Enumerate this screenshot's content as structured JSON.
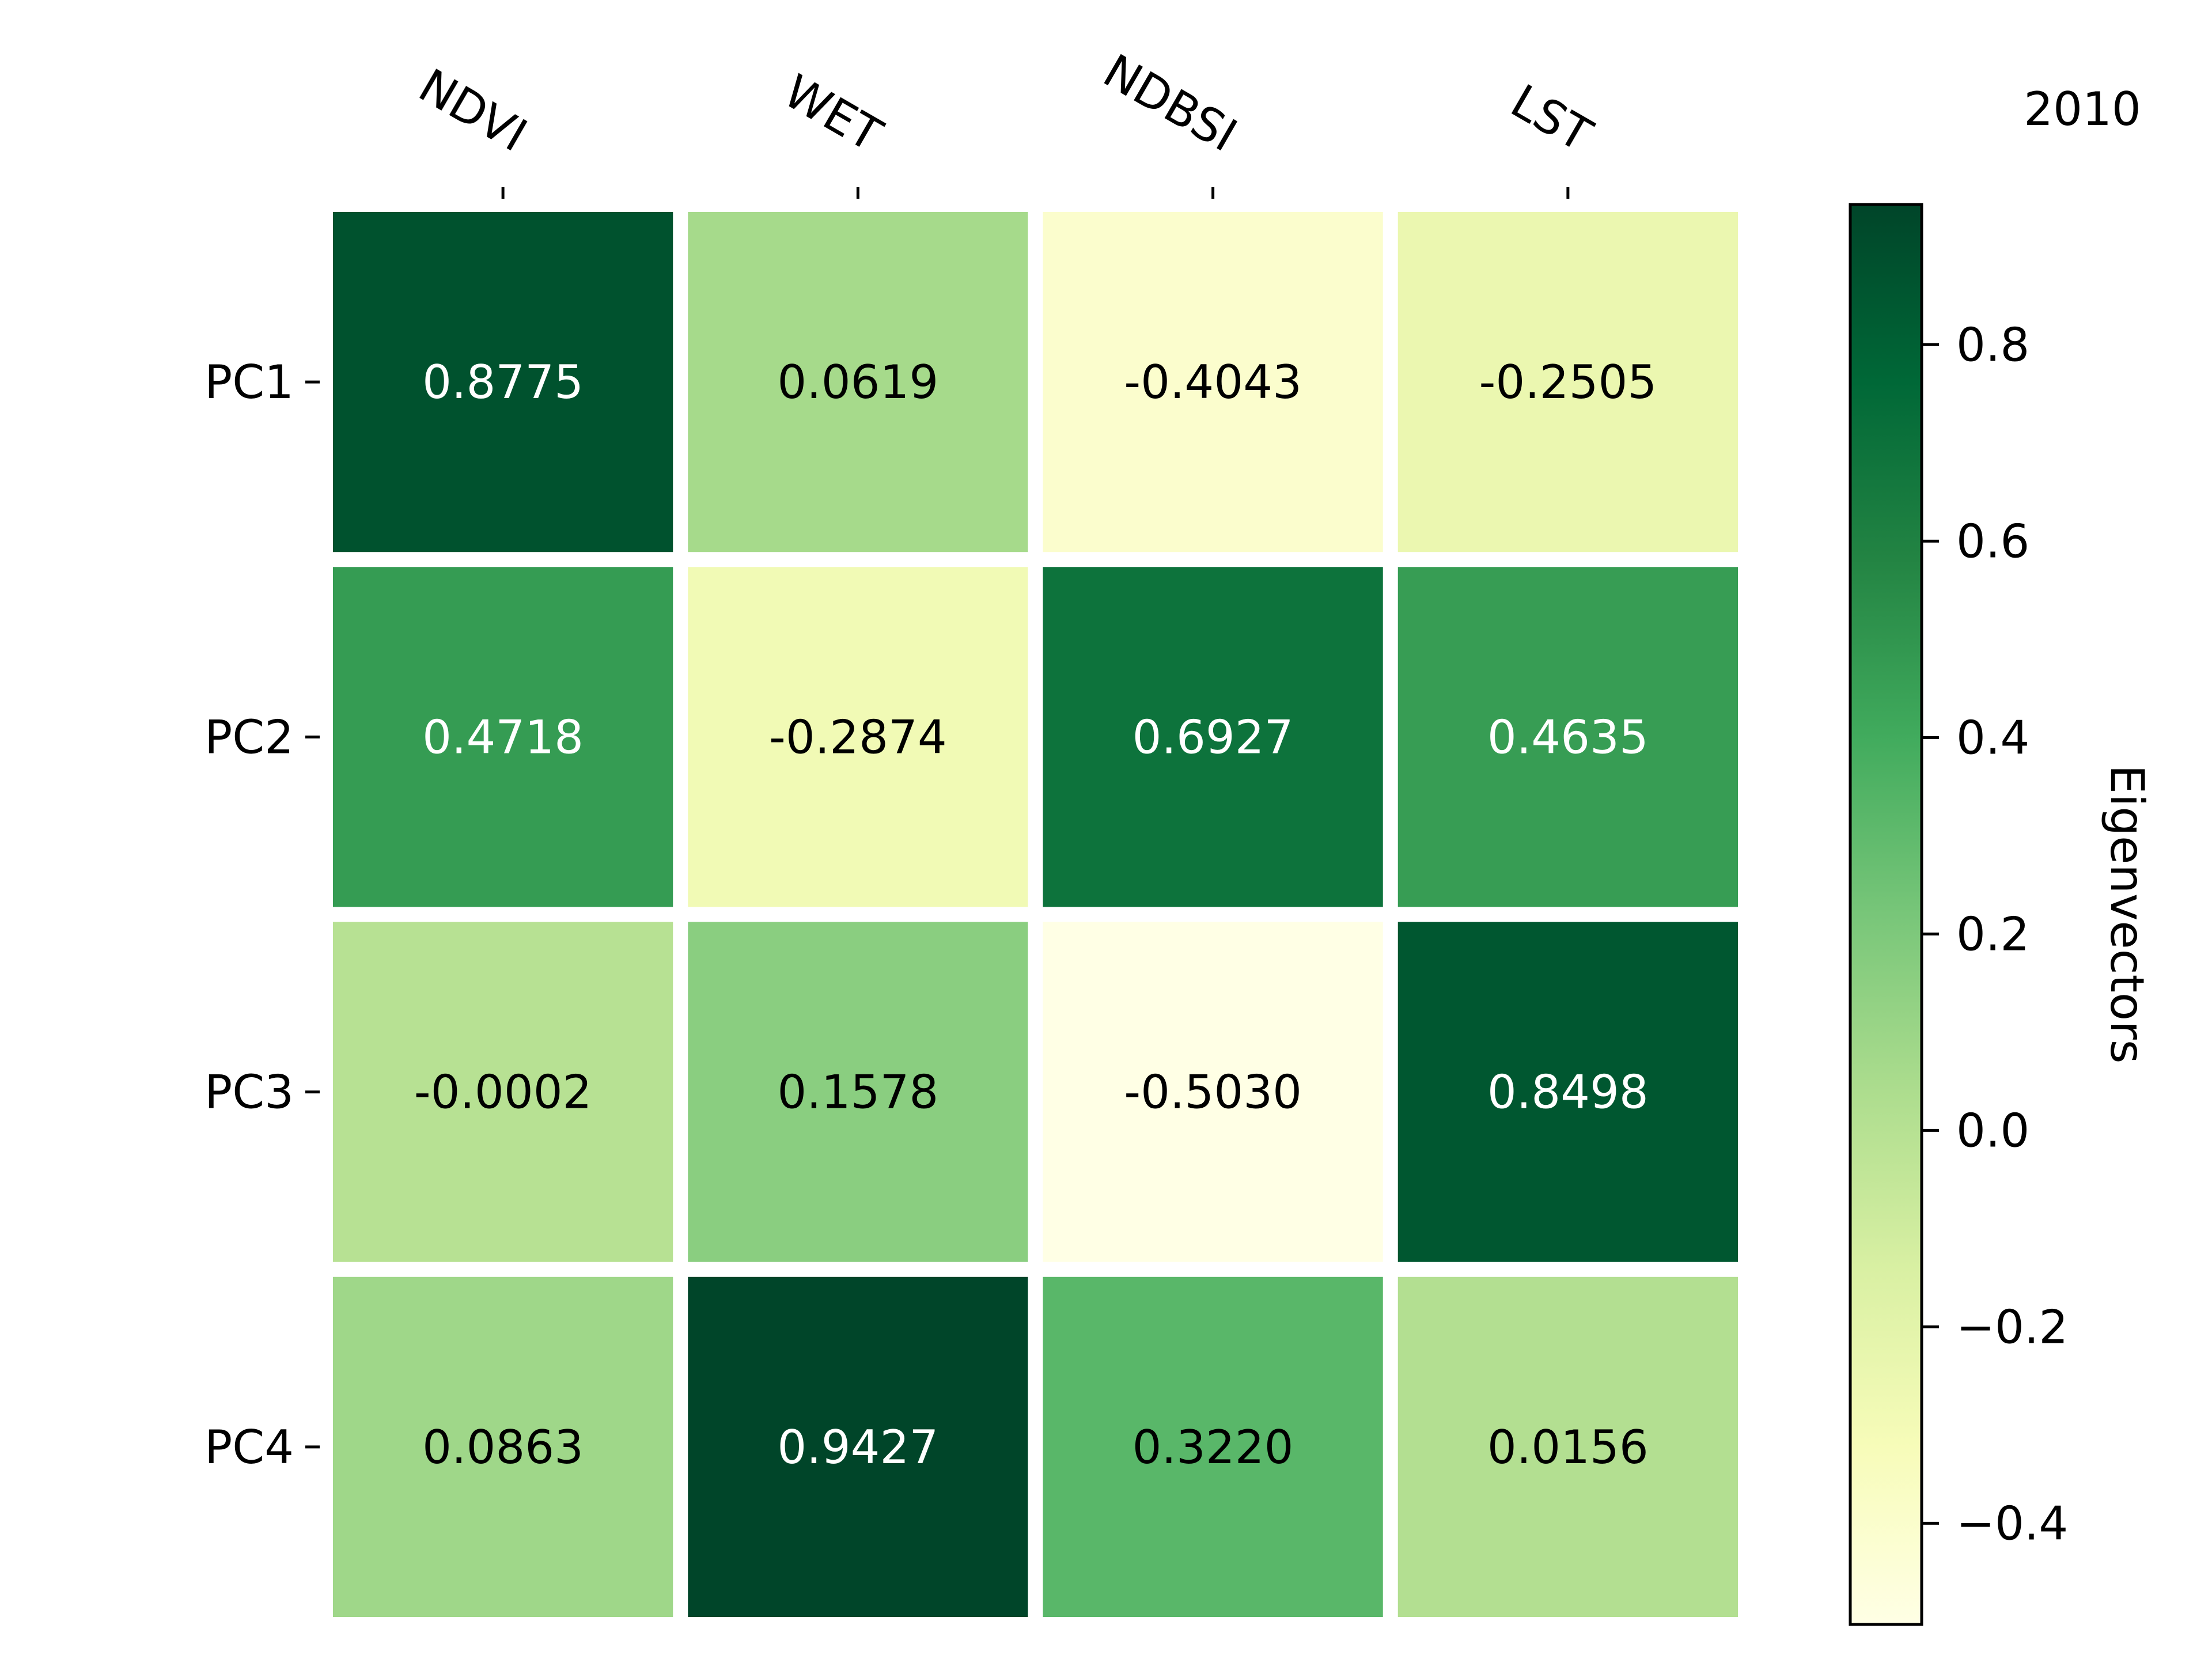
{
  "chart_data": {
    "type": "heatmap",
    "title": "2010",
    "rows": [
      "PC1",
      "PC2",
      "PC3",
      "PC4"
    ],
    "columns": [
      "NDVI",
      "WET",
      "NDBSI",
      "LST"
    ],
    "values": [
      [
        "0.8775",
        "0.0619",
        "-0.4043",
        "-0.2505"
      ],
      [
        "0.4718",
        "-0.2874",
        "0.6927",
        "0.4635"
      ],
      [
        "-0.0002",
        "0.1578",
        "-0.5030",
        "0.8498"
      ],
      [
        "0.0863",
        "0.9427",
        "0.3220",
        "0.0156"
      ]
    ],
    "colorbar": {
      "label": "Eigenvectors",
      "ticks": [
        "−0.4",
        "−0.2",
        "0.0",
        "0.2",
        "0.4",
        "0.6",
        "0.8"
      ],
      "range": [
        -0.503,
        0.9427
      ],
      "colormap": "YlGn"
    },
    "colormap_stops": [
      "#ffffe5",
      "#f7fcb9",
      "#d9f0a3",
      "#addd8e",
      "#78c679",
      "#41ab5d",
      "#238443",
      "#006837",
      "#004529"
    ],
    "text_colors": {
      "dark": "#000000",
      "light": "#ffffff"
    }
  }
}
